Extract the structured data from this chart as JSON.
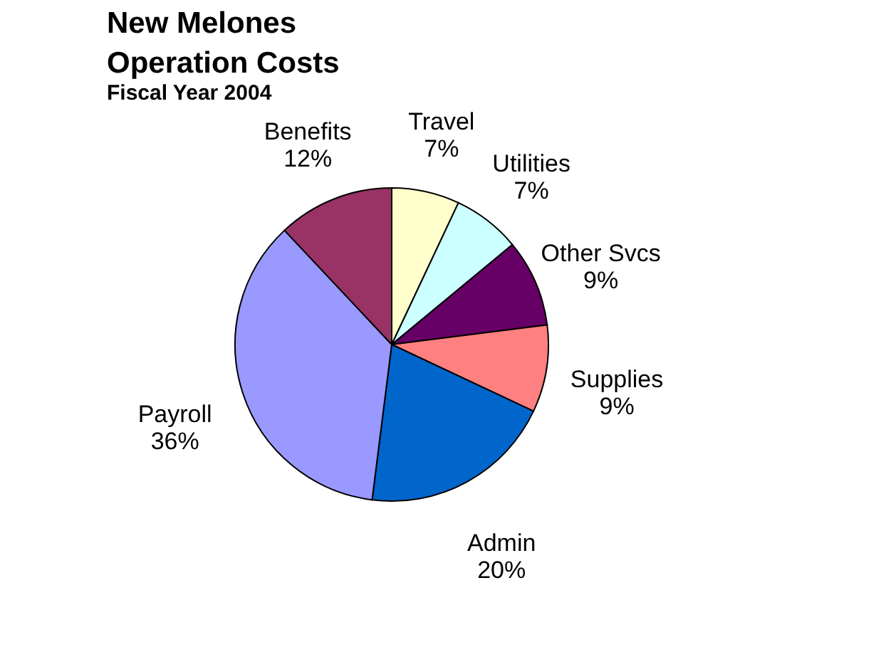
{
  "chart_data": {
    "type": "pie",
    "title": [
      "New Melones",
      "Operation Costs"
    ],
    "subtitle": "Fiscal Year 2004",
    "categories": [
      "Travel",
      "Utilities",
      "Other Svcs",
      "Supplies",
      "Admin",
      "Payroll",
      "Benefits"
    ],
    "values": [
      7,
      7,
      9,
      9,
      20,
      36,
      12
    ],
    "value_labels": [
      "7%",
      "7%",
      "9%",
      "9%",
      "20%",
      "36%",
      "12%"
    ],
    "colors": [
      "#ffffcc",
      "#ccffff",
      "#660066",
      "#ff8080",
      "#0066cc",
      "#9999ff",
      "#993366"
    ],
    "legend": false
  }
}
